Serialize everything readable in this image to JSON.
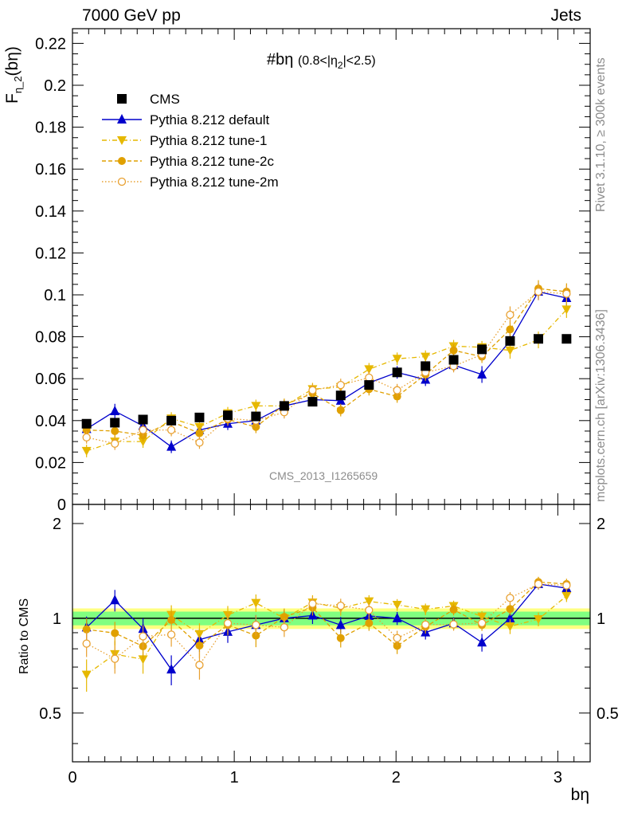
{
  "header": {
    "left": "7000 GeV pp",
    "right": "Jets"
  },
  "panel_title": {
    "prefix": "#bη",
    "range_a": "(0.8<|η",
    "range_sub": "2",
    "range_b": "|<2.5)"
  },
  "analysis_tag": "CMS_2013_I1265659",
  "side_notes": {
    "rivet": "Rivet 3.1.10, ≥ 300k events",
    "mcplots": "mcplots.cern.ch [arXiv:1306.3436]"
  },
  "axis_titles": {
    "main_y": "F",
    "main_y_sub": "η_2",
    "main_y_arg": "(bη)",
    "ratio_y": "Ratio to CMS",
    "x": "bη"
  },
  "legend": [
    "CMS",
    "Pythia 8.212 default",
    "Pythia 8.212 tune-1",
    "Pythia 8.212 tune-2c",
    "Pythia 8.212 tune-2m"
  ],
  "colors": {
    "data": "#000000",
    "default": "#0000cc",
    "tune1": "#e6b800",
    "tune2c": "#e0a000",
    "tune2m": "#e8a030",
    "band_inner": "#80ff80",
    "band_outer": "#ffff80",
    "ref_line": "#007000"
  },
  "chart_data": {
    "type": "scatter",
    "x": [
      0.087,
      0.262,
      0.436,
      0.611,
      0.785,
      0.96,
      1.134,
      1.309,
      1.484,
      1.658,
      1.833,
      2.007,
      2.182,
      2.356,
      2.531,
      2.705,
      2.88,
      3.054
    ],
    "xlim": [
      0,
      3.2
    ],
    "main": {
      "ylim": [
        0,
        0.227
      ],
      "yticks": [
        0,
        0.02,
        0.04,
        0.06,
        0.08,
        0.1,
        0.12,
        0.14,
        0.16,
        0.18,
        0.2,
        0.22
      ],
      "ytick_labels": [
        "0",
        "0.02",
        "0.04",
        "0.06",
        "0.08",
        "0.1",
        "0.12",
        "0.14",
        "0.16",
        "0.18",
        "0.2",
        "0.22"
      ]
    },
    "ratio": {
      "ylim": [
        0.35,
        2.3
      ],
      "yticks": [
        0.5,
        1,
        2
      ],
      "ytick_labels": [
        "0.5",
        "1",
        "2"
      ]
    },
    "xticks": [
      0,
      1,
      2,
      3
    ],
    "xtick_labels": [
      "0",
      "1",
      "2",
      "3"
    ],
    "series": [
      {
        "name": "CMS",
        "key": "data",
        "marker": "square",
        "values": [
          0.0385,
          0.039,
          0.0405,
          0.04,
          0.0415,
          0.0425,
          0.042,
          0.047,
          0.049,
          0.052,
          0.057,
          0.063,
          0.066,
          0.069,
          0.074,
          0.078,
          0.079,
          0.079
        ]
      },
      {
        "name": "Pythia 8.212 default",
        "key": "default",
        "marker": "triangle-up",
        "line": "solid",
        "values": [
          0.036,
          0.0445,
          0.0375,
          0.0275,
          0.0355,
          0.0385,
          0.04,
          0.047,
          0.05,
          0.0495,
          0.058,
          0.063,
          0.0595,
          0.0665,
          0.062,
          0.078,
          0.1015,
          0.0985
        ],
        "errors": [
          0.003,
          0.0035,
          0.003,
          0.003,
          0.003,
          0.003,
          0.003,
          0.003,
          0.003,
          0.003,
          0.003,
          0.003,
          0.003,
          0.003,
          0.004,
          0.004,
          0.004,
          0.004
        ]
      },
      {
        "name": "Pythia 8.212 tune-1",
        "key": "tune1",
        "marker": "triangle-down",
        "line": "dashdot",
        "values": [
          0.0255,
          0.03,
          0.03,
          0.041,
          0.037,
          0.0435,
          0.047,
          0.047,
          0.055,
          0.056,
          0.0645,
          0.0695,
          0.0705,
          0.0755,
          0.075,
          0.0735,
          0.0785,
          0.093
        ],
        "errors": [
          0.003,
          0.003,
          0.003,
          0.003,
          0.003,
          0.003,
          0.003,
          0.003,
          0.003,
          0.003,
          0.003,
          0.003,
          0.003,
          0.003,
          0.003,
          0.004,
          0.004,
          0.004
        ]
      },
      {
        "name": "Pythia 8.212 tune-2c",
        "key": "tune2c",
        "marker": "circle",
        "line": "dashed",
        "values": [
          0.0355,
          0.035,
          0.033,
          0.0395,
          0.034,
          0.0405,
          0.037,
          0.0475,
          0.053,
          0.045,
          0.055,
          0.0515,
          0.062,
          0.0735,
          0.0705,
          0.0835,
          0.103,
          0.1015
        ],
        "errors": [
          0.003,
          0.003,
          0.003,
          0.003,
          0.003,
          0.003,
          0.003,
          0.003,
          0.003,
          0.003,
          0.003,
          0.003,
          0.003,
          0.003,
          0.003,
          0.004,
          0.004,
          0.004
        ]
      },
      {
        "name": "Pythia 8.212 tune-2m",
        "key": "tune2m",
        "marker": "open-circle",
        "line": "dotted",
        "values": [
          0.032,
          0.029,
          0.0355,
          0.0355,
          0.0295,
          0.041,
          0.04,
          0.044,
          0.0545,
          0.057,
          0.0605,
          0.0545,
          0.063,
          0.066,
          0.0715,
          0.0905,
          0.1015,
          0.1005
        ],
        "errors": [
          0.003,
          0.003,
          0.003,
          0.003,
          0.003,
          0.003,
          0.003,
          0.003,
          0.003,
          0.003,
          0.003,
          0.003,
          0.003,
          0.003,
          0.003,
          0.004,
          0.004,
          0.004
        ]
      }
    ],
    "ratio_band": {
      "inner_halfwidth": 0.05,
      "outer_halfwidth": 0.075
    }
  }
}
